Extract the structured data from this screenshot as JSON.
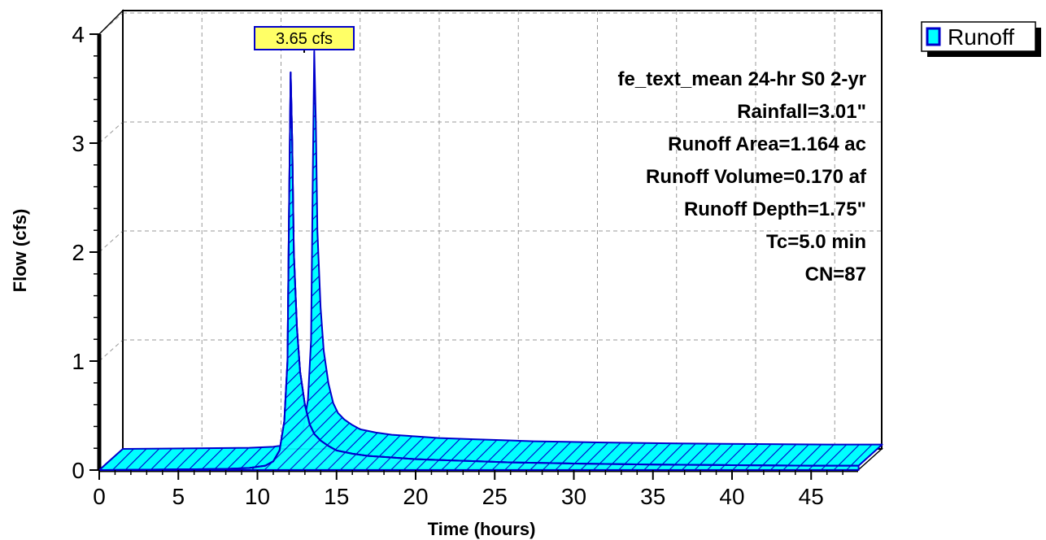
{
  "chart_data": {
    "type": "area",
    "xlabel": "Time  (hours)",
    "ylabel": "Flow  (cfs)",
    "xlim": [
      0,
      48
    ],
    "ylim": [
      0,
      4
    ],
    "x_ticks": [
      0,
      5,
      10,
      15,
      20,
      25,
      30,
      35,
      40,
      45
    ],
    "y_ticks": [
      0,
      1,
      2,
      3,
      4
    ],
    "grid": true,
    "legend_position": "top-right",
    "series": [
      {
        "name": "Runoff",
        "color": "#00ffff",
        "edge_color": "#0000cc",
        "x": [
          0,
          8,
          9.5,
          10.5,
          11,
          11.4,
          11.7,
          11.9,
          12.0,
          12.1,
          12.2,
          12.3,
          12.5,
          12.7,
          13.0,
          13.3,
          13.6,
          14,
          14.5,
          15,
          16,
          17,
          18,
          20,
          22,
          24,
          26,
          28,
          30,
          35,
          40,
          45,
          48
        ],
        "values": [
          0,
          0.01,
          0.02,
          0.04,
          0.08,
          0.18,
          0.45,
          1.0,
          2.4,
          3.65,
          3.0,
          2.0,
          1.3,
          0.9,
          0.6,
          0.42,
          0.33,
          0.27,
          0.22,
          0.18,
          0.15,
          0.13,
          0.12,
          0.1,
          0.09,
          0.08,
          0.07,
          0.065,
          0.06,
          0.05,
          0.045,
          0.04,
          0.04
        ]
      }
    ],
    "peak_label": "3.65 cfs",
    "peak": {
      "x": 12.1,
      "y": 3.65
    },
    "annotations": [
      "fe_text_mean 24-hr S0 2-yr",
      "Rainfall=3.01\"",
      "Runoff Area=1.164 ac",
      "Runoff Volume=0.170 af",
      "Runoff Depth=1.75\"",
      "Tc=5.0 min",
      "CN=87"
    ]
  }
}
